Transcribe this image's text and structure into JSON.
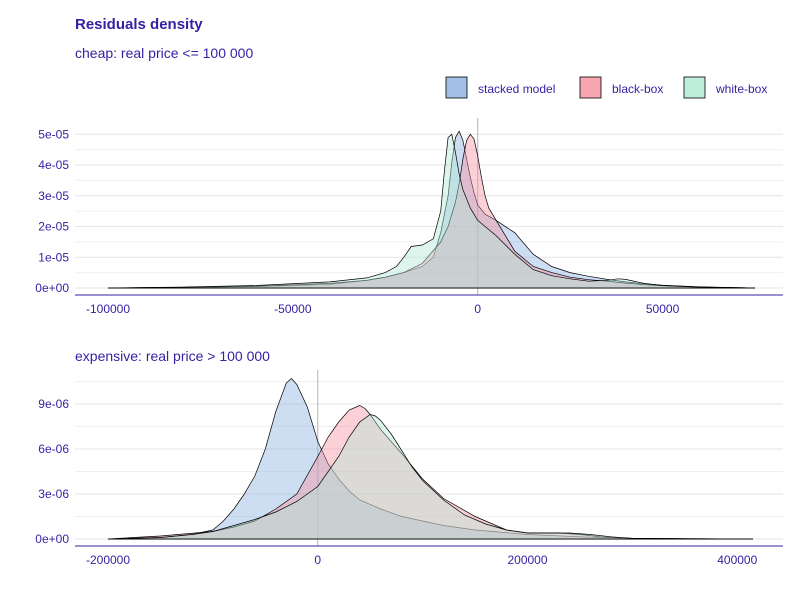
{
  "title": "Residuals density",
  "legend": {
    "position": "top-right",
    "items": [
      {
        "label": "stacked model",
        "color": "#8bb0df"
      },
      {
        "label": "black-box",
        "color": "#f5909f"
      },
      {
        "label": "white-box",
        "color": "#aee8d3"
      }
    ]
  },
  "chart_data": [
    {
      "type": "area",
      "subtitle": "cheap: real price <= 100 000",
      "xlim": [
        -100000,
        75000
      ],
      "ylim": [
        0,
        5.4e-05
      ],
      "x_ticks": [
        -100000,
        -50000,
        0,
        50000
      ],
      "x_tick_labels": [
        "-100000",
        "-50000",
        "0",
        "50000"
      ],
      "y_ticks": [
        0,
        1e-05,
        2e-05,
        3e-05,
        4e-05,
        5e-05
      ],
      "y_tick_labels": [
        "0e+00",
        "1e-05",
        "2e-05",
        "3e-05",
        "4e-05",
        "5e-05"
      ],
      "series": [
        {
          "name": "stacked model",
          "color": "#8bb0df",
          "x": [
            -100000,
            -80000,
            -60000,
            -40000,
            -30000,
            -25000,
            -20000,
            -15000,
            -12000,
            -10000,
            -8000,
            -7000,
            -6000,
            -5000,
            -4000,
            -3000,
            -2000,
            -1000,
            0,
            2000,
            5000,
            10000,
            15000,
            20000,
            25000,
            30000,
            35000,
            40000,
            45000,
            50000,
            60000,
            75000
          ],
          "y": [
            0.0,
            2e-07,
            5e-07,
            1.2e-06,
            2.5e-06,
            3.5e-06,
            5e-06,
            7e-06,
            1e-05,
            1.8e-05,
            3e-05,
            4.1e-05,
            4.9e-05,
            5.1e-05,
            4.8e-05,
            4.2e-05,
            3.6e-05,
            3.1e-05,
            2.7e-05,
            2.4e-05,
            2.2e-05,
            1.8e-05,
            1.1e-05,
            7e-06,
            5e-06,
            3.8e-06,
            2.8e-06,
            2e-06,
            1.4e-06,
            9e-07,
            4e-07,
            0.0
          ]
        },
        {
          "name": "black-box",
          "color": "#f5909f",
          "x": [
            -100000,
            -80000,
            -60000,
            -40000,
            -30000,
            -25000,
            -20000,
            -15000,
            -10000,
            -8000,
            -6000,
            -5000,
            -4000,
            -3000,
            -2000,
            -1000,
            0,
            1000,
            2000,
            3000,
            5000,
            8000,
            10000,
            15000,
            20000,
            25000,
            30000,
            35000,
            40000,
            45000,
            50000,
            60000,
            75000
          ],
          "y": [
            0.0,
            2e-07,
            6e-07,
            1.5e-06,
            2.5e-06,
            3.5e-06,
            5e-06,
            8e-06,
            1.5e-05,
            2e-05,
            2.8e-05,
            3.4e-05,
            4.2e-05,
            4.8e-05,
            5e-05,
            4.85e-05,
            4.3e-05,
            3.6e-05,
            3e-05,
            2.6e-05,
            2.2e-05,
            1.6e-05,
            1.2e-05,
            7e-06,
            5e-06,
            3.5e-06,
            2.7e-06,
            2.2e-06,
            1.6e-06,
            1.1e-06,
            7e-07,
            3e-07,
            0.0
          ]
        },
        {
          "name": "white-box",
          "color": "#aee8d3",
          "x": [
            -100000,
            -80000,
            -60000,
            -40000,
            -30000,
            -25000,
            -22000,
            -20000,
            -18000,
            -15000,
            -12000,
            -10000,
            -9000,
            -8000,
            -7000,
            -6000,
            -5000,
            -4000,
            -3000,
            -2000,
            -1000,
            0,
            2000,
            5000,
            10000,
            15000,
            20000,
            25000,
            30000,
            35000,
            38000,
            40000,
            45000,
            50000,
            60000,
            75000
          ],
          "y": [
            0.0,
            3e-07,
            8e-07,
            2e-06,
            3.3e-06,
            5e-06,
            7e-06,
            1e-05,
            1.35e-05,
            1.4e-05,
            1.6e-05,
            2.5e-05,
            3.8e-05,
            4.9e-05,
            5e-05,
            4.4e-05,
            3.7e-05,
            3.2e-05,
            2.9e-05,
            2.6e-05,
            2.4e-05,
            2.2e-05,
            2e-05,
            1.7e-05,
            1.1e-05,
            6e-06,
            4e-06,
            3e-06,
            2.2e-06,
            2.5e-06,
            3e-06,
            2.8e-06,
            1.5e-06,
            8e-07,
            3e-07,
            0.0
          ]
        }
      ]
    },
    {
      "type": "area",
      "subtitle": "expensive: real price > 100 000",
      "xlim": [
        -200000,
        415000
      ],
      "ylim": [
        0,
        1.1e-05
      ],
      "x_ticks": [
        -200000,
        0,
        200000,
        400000
      ],
      "x_tick_labels": [
        "-200000",
        "0",
        "200000",
        "400000"
      ],
      "y_ticks": [
        0,
        3e-06,
        6e-06,
        9e-06
      ],
      "y_tick_labels": [
        "0e+00",
        "3e-06",
        "6e-06",
        "9e-06"
      ],
      "series": [
        {
          "name": "stacked model",
          "color": "#8bb0df",
          "x": [
            -200000,
            -150000,
            -120000,
            -100000,
            -90000,
            -80000,
            -70000,
            -60000,
            -50000,
            -40000,
            -30000,
            -25000,
            -20000,
            -10000,
            0,
            10000,
            20000,
            30000,
            40000,
            60000,
            80000,
            100000,
            120000,
            150000,
            200000,
            250000,
            300000,
            350000,
            415000
          ],
          "y": [
            0.0,
            1e-07,
            3e-07,
            6e-07,
            1.2e-06,
            2e-06,
            3e-06,
            4.2e-06,
            6e-06,
            8.5e-06,
            1.04e-05,
            1.07e-05,
            1.03e-05,
            8.8e-06,
            6.5e-06,
            5e-06,
            4e-06,
            3.2e-06,
            2.6e-06,
            2e-06,
            1.5e-06,
            1.2e-06,
            9e-07,
            6e-07,
            3e-07,
            1.5e-07,
            5e-08,
            2e-08,
            0.0
          ]
        },
        {
          "name": "black-box",
          "color": "#f5909f",
          "x": [
            -200000,
            -150000,
            -100000,
            -80000,
            -60000,
            -40000,
            -20000,
            0,
            10000,
            20000,
            30000,
            40000,
            45000,
            50000,
            60000,
            70000,
            80000,
            100000,
            120000,
            150000,
            180000,
            200000,
            230000,
            250000,
            270000,
            300000,
            350000,
            415000
          ],
          "y": [
            0.0,
            2e-07,
            5e-07,
            8e-07,
            1.2e-06,
            2e-06,
            3e-06,
            5.5e-06,
            6.8e-06,
            7.8e-06,
            8.6e-06,
            8.9e-06,
            8.7e-06,
            8.3e-06,
            7.3e-06,
            6.5e-06,
            5.7e-06,
            4e-06,
            2.7e-06,
            1.5e-06,
            6e-07,
            4e-07,
            4e-07,
            3e-07,
            1.5e-07,
            5e-08,
            2e-08,
            0.0
          ]
        },
        {
          "name": "white-box",
          "color": "#aee8d3",
          "x": [
            -200000,
            -150000,
            -120000,
            -100000,
            -80000,
            -60000,
            -40000,
            -20000,
            0,
            20000,
            30000,
            40000,
            50000,
            55000,
            60000,
            70000,
            80000,
            90000,
            100000,
            120000,
            140000,
            160000,
            180000,
            200000,
            220000,
            240000,
            260000,
            280000,
            300000,
            350000,
            415000
          ],
          "y": [
            0.0,
            1e-07,
            3e-07,
            5e-07,
            9e-07,
            1.3e-06,
            1.8e-06,
            2.5e-06,
            3.5e-06,
            5.5e-06,
            6.8e-06,
            7.8e-06,
            8.3e-06,
            8.2e-06,
            7.9e-06,
            7e-06,
            5.9e-06,
            4.8e-06,
            3.9e-06,
            2.6e-06,
            1.6e-06,
            1e-06,
            6e-07,
            4e-07,
            4e-07,
            4e-07,
            3e-07,
            1.5e-07,
            5e-08,
            2e-08,
            0.0
          ]
        }
      ]
    }
  ]
}
